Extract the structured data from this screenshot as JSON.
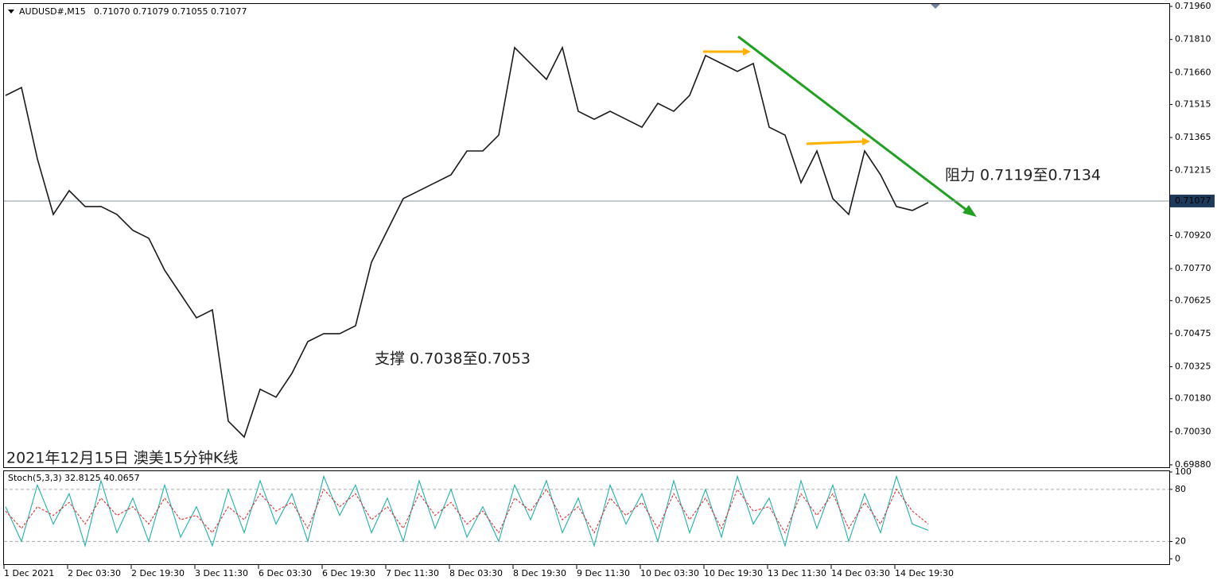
{
  "header": {
    "symbol": "AUDUSD#,M15",
    "ohlc": "0.71070 0.71079 0.71055 0.71077"
  },
  "chart_data": [
    {
      "type": "line",
      "categories": [
        "1 Dec 2021",
        null,
        null,
        null,
        "2 Dec 03:30",
        null,
        null,
        null,
        "2 Dec 19:30",
        null,
        null,
        null,
        "3 Dec 11:30",
        null,
        null,
        null,
        "6 Dec 03:30",
        null,
        null,
        null,
        "6 Dec 19:30",
        null,
        null,
        null,
        "7 Dec 11:30",
        null,
        null,
        null,
        "8 Dec 03:30",
        null,
        null,
        null,
        "8 Dec 19:30",
        null,
        null,
        null,
        "9 Dec 11:30",
        null,
        null,
        null,
        "10 Dec 03:30",
        null,
        null,
        null,
        "10 Dec 19:30",
        null,
        null,
        null,
        "13 Dec 11:30",
        null,
        null,
        null,
        "14 Dec 03:30",
        null,
        null,
        null,
        "14 Dec 19:30",
        null,
        null
      ],
      "series": [
        {
          "color": "#1a1a1a",
          "values": [
            0.71556,
            0.71592,
            0.71268,
            0.71016,
            0.71124,
            0.71052,
            0.71052,
            0.71016,
            0.70944,
            0.70908,
            0.70763,
            0.70655,
            0.70547,
            0.70583,
            0.70078,
            0.70006,
            0.70223,
            0.70187,
            0.70295,
            0.70439,
            0.70475,
            0.70475,
            0.70511,
            0.70799,
            0.70944,
            0.71088,
            0.71124,
            0.7116,
            0.71196,
            0.71304,
            0.71304,
            0.71376,
            0.71773,
            0.71701,
            0.71629,
            0.71773,
            0.71484,
            0.71448,
            0.71484,
            0.71448,
            0.71412,
            0.7152,
            0.71484,
            0.71556,
            0.71737,
            0.71701,
            0.71665,
            0.71701,
            0.71412,
            0.71376,
            0.7116,
            0.71304,
            0.71088,
            0.71016,
            0.71304,
            0.71196,
            0.71052,
            0.71034,
            0.7107
          ]
        }
      ],
      "ylim": [
        0.69869,
        0.71971
      ],
      "yticks": [
        {
          "value": 0.7196,
          "label": "0.71960"
        },
        {
          "value": 0.7181,
          "label": "0.71810"
        },
        {
          "value": 0.7166,
          "label": "0.71660"
        },
        0.71515,
        0.71365,
        0.71215,
        {
          "value": 0.7092,
          "label": "0.70920"
        },
        {
          "value": 0.7077,
          "label": "0.70770"
        },
        0.70625,
        0.70475,
        0.70325,
        {
          "value": 0.7018,
          "label": "0.70180"
        },
        {
          "value": 0.7003,
          "label": "0.70030"
        },
        {
          "value": 0.6988,
          "label": "0.69880"
        }
      ],
      "current_price": 0.71077,
      "annotations": [
        "阻力 0.7119至0.7134",
        "支撑 0.7038至0.7053",
        "2021年12月15日 澳美15分钟K线"
      ]
    },
    {
      "type": "line",
      "title": "Stoch(5,3,3) 32.8125 40.0657",
      "series": [
        {
          "color": "#20b2aa",
          "values": [
            60,
            20,
            85,
            40,
            75,
            15,
            90,
            30,
            70,
            20,
            85,
            25,
            60,
            15,
            80,
            30,
            90,
            40,
            75,
            20,
            95,
            50,
            85,
            30,
            70,
            20,
            90,
            35,
            80,
            25,
            60,
            20,
            85,
            45,
            90,
            30,
            70,
            15,
            85,
            40,
            75,
            20,
            90,
            30,
            80,
            25,
            95,
            40,
            70,
            15,
            90,
            35,
            85,
            20,
            75,
            30,
            95,
            40,
            32.8125
          ]
        },
        {
          "color": "#e03030",
          "values": [
            55,
            35,
            60,
            50,
            65,
            40,
            70,
            50,
            60,
            40,
            70,
            45,
            50,
            30,
            60,
            45,
            75,
            55,
            65,
            35,
            80,
            60,
            75,
            45,
            60,
            35,
            75,
            50,
            65,
            40,
            55,
            30,
            70,
            55,
            80,
            45,
            60,
            30,
            70,
            50,
            65,
            35,
            75,
            45,
            70,
            35,
            80,
            55,
            60,
            30,
            75,
            50,
            75,
            35,
            65,
            40,
            80,
            55,
            40.0657
          ]
        }
      ],
      "ylim": [
        -8,
        100
      ],
      "yticks": [
        0,
        20,
        80,
        100
      ]
    }
  ]
}
